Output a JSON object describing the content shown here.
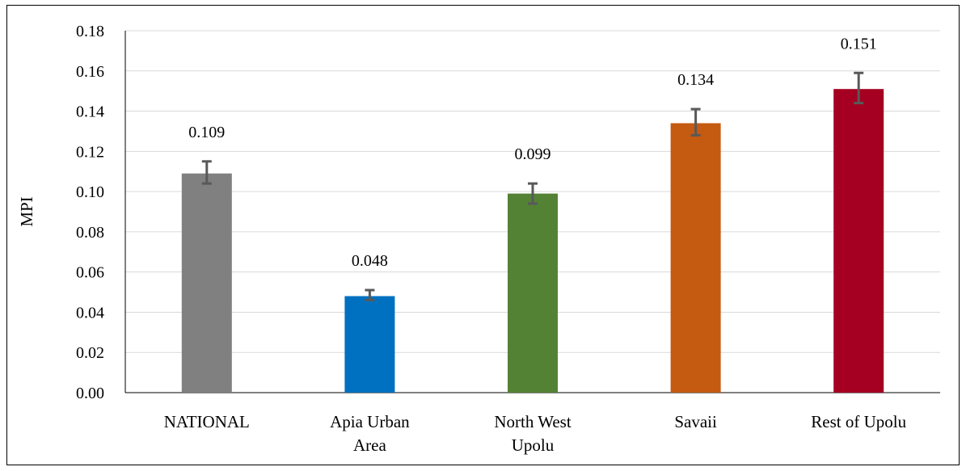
{
  "chart_data": {
    "type": "bar",
    "title": "",
    "xlabel": "",
    "ylabel": "MPI",
    "ylim": [
      0,
      0.18
    ],
    "yticks": [
      "0.00",
      "0.02",
      "0.04",
      "0.06",
      "0.08",
      "0.10",
      "0.12",
      "0.14",
      "0.16",
      "0.18"
    ],
    "grid": true,
    "legend": "none",
    "categories": [
      [
        "NATIONAL"
      ],
      [
        "Apia Urban",
        "Area"
      ],
      [
        "North West",
        "Upolu"
      ],
      [
        "Savaii"
      ],
      [
        "Rest of Upolu"
      ]
    ],
    "values": [
      0.109,
      0.048,
      0.099,
      0.134,
      0.151
    ],
    "data_labels": [
      "0.109",
      "0.048",
      "0.099",
      "0.134",
      "0.151"
    ],
    "error_low": [
      0.104,
      0.046,
      0.094,
      0.128,
      0.144
    ],
    "error_high": [
      0.115,
      0.051,
      0.104,
      0.141,
      0.159
    ],
    "colors": [
      "#808080",
      "#0070C0",
      "#548235",
      "#C55A11",
      "#A50021"
    ],
    "error_bar_color": "#595959",
    "grid_color": "#d9d9d9"
  }
}
